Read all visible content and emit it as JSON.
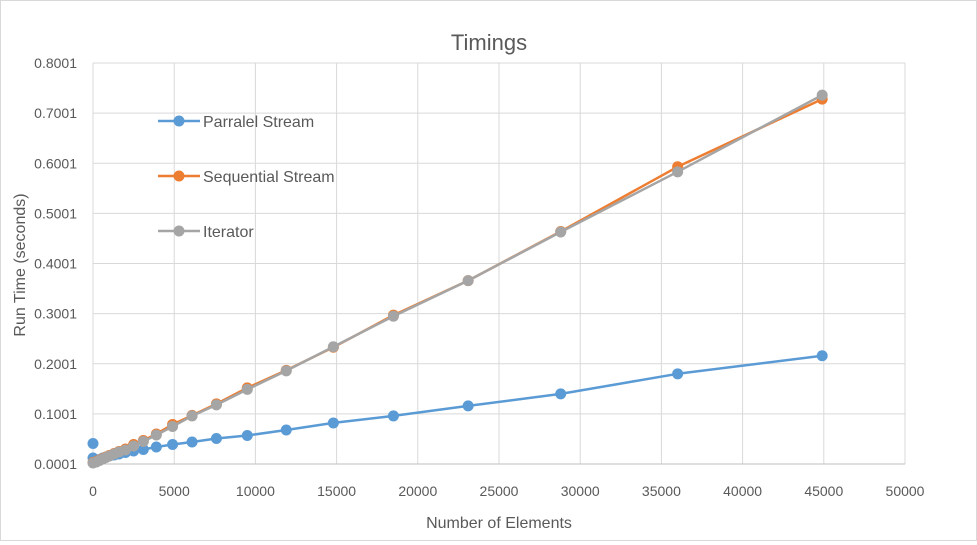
{
  "chart_data": {
    "type": "line",
    "title": "Timings",
    "xlabel": "Number of Elements",
    "ylabel": "Run Time (seconds)",
    "xlim": [
      0,
      50000
    ],
    "ylim": [
      0.0001,
      0.8001
    ],
    "x_ticks": [
      0,
      5000,
      10000,
      15000,
      20000,
      25000,
      30000,
      35000,
      40000,
      45000,
      50000
    ],
    "y_ticks": [
      0.0001,
      0.1001,
      0.2001,
      0.3001,
      0.4001,
      0.5001,
      0.6001,
      0.7001,
      0.8001
    ],
    "x_tick_labels": [
      "0",
      "5000",
      "10000",
      "15000",
      "20000",
      "25000",
      "30000",
      "35000",
      "40000",
      "45000",
      "50000"
    ],
    "y_tick_labels": [
      "0.0001",
      "0.1001",
      "0.2001",
      "0.3001",
      "0.4001",
      "0.5001",
      "0.6001",
      "0.7001",
      "0.8001"
    ],
    "grid": "horizontal-and-vertical",
    "legend_position": "top-left-inside",
    "series": [
      {
        "name": "Parralel Stream",
        "color": "#5b9bd5",
        "points": [
          [
            0,
            0.041
          ],
          [
            0,
            0.012
          ],
          [
            200,
            0.007
          ],
          [
            400,
            0.009
          ],
          [
            600,
            0.012
          ],
          [
            800,
            0.014
          ],
          [
            1000,
            0.016
          ],
          [
            1300,
            0.018
          ],
          [
            1600,
            0.02
          ],
          [
            2000,
            0.023
          ],
          [
            2500,
            0.026
          ],
          [
            3100,
            0.029
          ],
          [
            3900,
            0.034
          ],
          [
            4900,
            0.039
          ],
          [
            6100,
            0.044
          ],
          [
            7600,
            0.051
          ],
          [
            9500,
            0.057
          ],
          [
            11900,
            0.068
          ],
          [
            14800,
            0.082
          ],
          [
            18500,
            0.096
          ],
          [
            23100,
            0.116
          ],
          [
            28800,
            0.14
          ],
          [
            36000,
            0.18
          ],
          [
            44900,
            0.216
          ]
        ]
      },
      {
        "name": "Sequential Stream",
        "color": "#ed7d31",
        "points": [
          [
            0,
            0.003
          ],
          [
            200,
            0.005
          ],
          [
            400,
            0.008
          ],
          [
            600,
            0.011
          ],
          [
            800,
            0.014
          ],
          [
            1000,
            0.017
          ],
          [
            1300,
            0.021
          ],
          [
            1600,
            0.025
          ],
          [
            2000,
            0.03
          ],
          [
            2500,
            0.039
          ],
          [
            3100,
            0.047
          ],
          [
            3900,
            0.06
          ],
          [
            4900,
            0.079
          ],
          [
            6100,
            0.097
          ],
          [
            7600,
            0.12
          ],
          [
            9500,
            0.152
          ],
          [
            11900,
            0.187
          ],
          [
            14800,
            0.233
          ],
          [
            18500,
            0.297
          ],
          [
            23100,
            0.366
          ],
          [
            28800,
            0.464
          ],
          [
            36000,
            0.593
          ],
          [
            44900,
            0.728
          ]
        ]
      },
      {
        "name": "Iterator",
        "color": "#a5a5a5",
        "points": [
          [
            0,
            0.002
          ],
          [
            200,
            0.004
          ],
          [
            400,
            0.007
          ],
          [
            600,
            0.01
          ],
          [
            800,
            0.013
          ],
          [
            1000,
            0.016
          ],
          [
            1300,
            0.02
          ],
          [
            1600,
            0.024
          ],
          [
            2000,
            0.028
          ],
          [
            2500,
            0.036
          ],
          [
            3100,
            0.045
          ],
          [
            3900,
            0.058
          ],
          [
            4900,
            0.075
          ],
          [
            6100,
            0.096
          ],
          [
            7600,
            0.118
          ],
          [
            9500,
            0.149
          ],
          [
            11900,
            0.186
          ],
          [
            14800,
            0.234
          ],
          [
            18500,
            0.295
          ],
          [
            23100,
            0.366
          ],
          [
            28800,
            0.463
          ],
          [
            36000,
            0.583
          ],
          [
            44900,
            0.736
          ]
        ]
      }
    ]
  }
}
